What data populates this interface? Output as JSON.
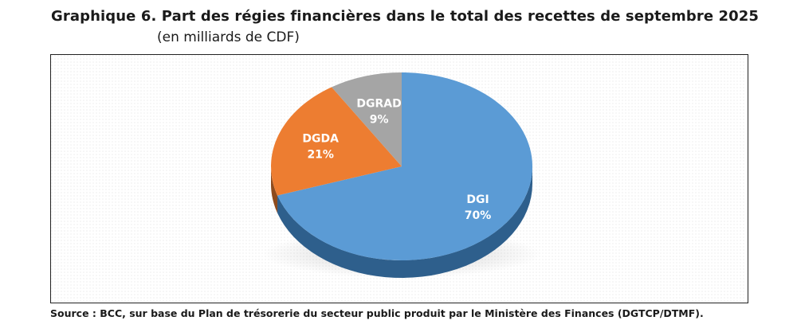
{
  "header": {
    "title": "Graphique 6. Part des régies financières dans le total des recettes de septembre 2025",
    "subtitle": "(en milliards de CDF)"
  },
  "footer": {
    "source": "Source : BCC, sur base du Plan de trésorerie du secteur public produit par le Ministère des Finances (DGTCP/DTMF)."
  },
  "colors": {
    "DGI": "#5b9bd5",
    "DGI_side": "#2e5f8c",
    "DGDA": "#ed7d31",
    "DGRAD": "#a5a5a5",
    "shadow": "#1f3a57"
  },
  "chart_data": {
    "type": "pie",
    "title": "Part des régies financières dans le total des recettes de septembre 2025",
    "subtitle": "(en milliards de CDF)",
    "legend": "none (labels on slices)",
    "categories": [
      "DGI",
      "DGDA",
      "DGRAD"
    ],
    "values": [
      70,
      21,
      9
    ],
    "unit": "%",
    "labels": [
      {
        "name": "DGI",
        "pct": "70%"
      },
      {
        "name": "DGDA",
        "pct": "21%"
      },
      {
        "name": "DGRAD",
        "pct": "9%"
      }
    ]
  }
}
